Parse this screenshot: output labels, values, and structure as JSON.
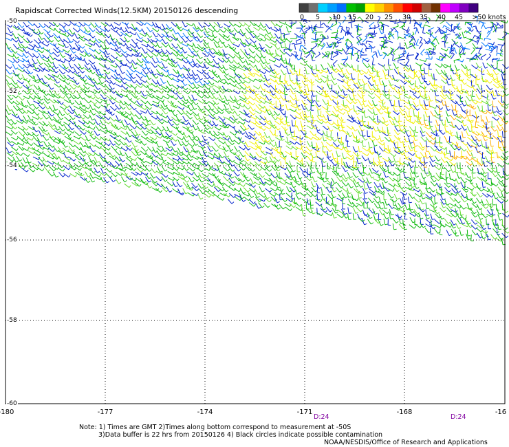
{
  "title": "Rapidscat Corrected Winds(12.5KM) 20150126 descending",
  "legend": {
    "labels": [
      "0",
      "5",
      "10",
      "15",
      "20",
      "25",
      "30",
      "35",
      "40",
      "45",
      ">50 knots"
    ],
    "colors": [
      "#404040",
      "#707070",
      "#00d0ff",
      "#00a0ff",
      "#0070ff",
      "#00c000",
      "#00a000",
      "#ffff00",
      "#ffd000",
      "#ff9000",
      "#ff5000",
      "#ff0000",
      "#d00000",
      "#a06040",
      "#703000",
      "#ff00ff",
      "#c000ff",
      "#8000c0",
      "#400080"
    ]
  },
  "axes": {
    "lon_labels": [
      "-180",
      "-177",
      "-174",
      "-171",
      "-168",
      "-16"
    ],
    "lat_labels": [
      "-50",
      "-52",
      "-54",
      "-56",
      "-58",
      "-60"
    ],
    "lon_range": [
      -180,
      -165
    ],
    "lat_range": [
      -60,
      -50
    ],
    "grid": "dotted"
  },
  "pass_labels": [
    "D:24",
    "D:24"
  ],
  "notes": {
    "line1": "Note: 1) Times are GMT 2)Times along bottom correspond to measurement at -50S",
    "line2": "3)Data buffer is 22 hrs from 20150126 4) Black circles indicate possible contamination",
    "line3": "NOAA/NESDIS/Office of Research and Applications"
  },
  "wind_colors": {
    "blue": "#0022cc",
    "light_blue": "#0077ff",
    "green": "#11bb11",
    "light_green": "#66dd33",
    "yellow": "#f0f000",
    "orange": "#ffb000"
  }
}
